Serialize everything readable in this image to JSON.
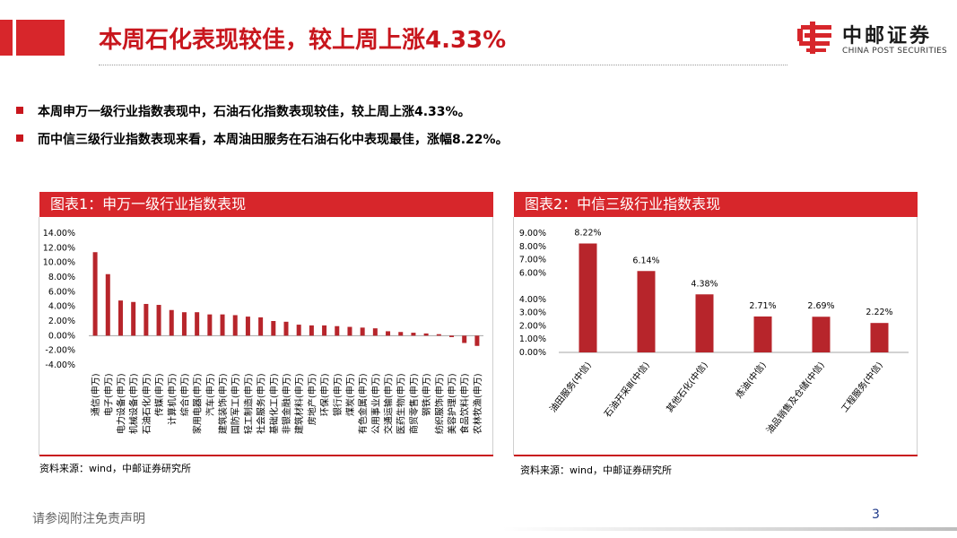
{
  "header": {
    "title": "本周石化表现较佳，较上周上涨4.33%",
    "logo_cn": "中邮证券",
    "logo_en": "CHINA POST SECURITIES"
  },
  "bullets": [
    "本周申万一级行业指数表现中，石油石化指数表现较佳，较上周上涨4.33%。",
    "而中信三级行业指数表现来看，本周油田服务在石油石化中表现最佳，涨幅8.22%。"
  ],
  "panels": [
    {
      "title": "图表1：申万一级行业指数表现",
      "source": "资料来源：wind，中邮证券研究所"
    },
    {
      "title": "图表2：中信三级行业指数表现",
      "source": "资料来源：wind，中邮证券研究所"
    }
  ],
  "footer": {
    "note": "请参阅附注免责声明",
    "page": "3"
  },
  "colors": {
    "accent": "#d7262b",
    "bar": "#b7252b",
    "title": "#c8161d"
  },
  "chart_data": [
    {
      "type": "bar",
      "title": "",
      "ylim": [
        -4,
        14
      ],
      "y_ticks": [
        "14.00%",
        "12.00%",
        "10.00%",
        "8.00%",
        "6.00%",
        "4.00%",
        "2.00%",
        "0.00%",
        "-2.00%",
        "-4.00%"
      ],
      "y_tick_values": [
        14,
        12,
        10,
        8,
        6,
        4,
        2,
        0,
        -2,
        -4
      ],
      "categories": [
        "通信(申万)",
        "电子(申万)",
        "电力设备(申万)",
        "机械设备(申万)",
        "石油石化(申万)",
        "传媒(申万)",
        "计算机(申万)",
        "综合(申万)",
        "家用电器(申万)",
        "汽车(申万)",
        "建筑装饰(申万)",
        "国防军工(申万)",
        "轻工制造(申万)",
        "社会服务(申万)",
        "基础化工(申万)",
        "非银金融(申万)",
        "建筑材料(申万)",
        "房地产(申万)",
        "环保(申万)",
        "银行(申万)",
        "煤炭(申万)",
        "有色金属(申万)",
        "公用事业(申万)",
        "交通运输(申万)",
        "医药生物(申万)",
        "商贸零售(申万)",
        "钢铁(申万)",
        "纺织服饰(申万)",
        "美容护理(申万)",
        "食品饮料(申万)",
        "农林牧渔(申万)"
      ],
      "values": [
        11.4,
        8.4,
        4.8,
        4.6,
        4.33,
        4.2,
        3.5,
        3.2,
        3.2,
        2.9,
        2.9,
        2.8,
        2.6,
        2.5,
        2.0,
        1.9,
        1.5,
        1.4,
        1.4,
        1.3,
        1.2,
        1.1,
        1.0,
        0.6,
        0.5,
        0.4,
        0.3,
        0.2,
        -0.2,
        -1.0,
        -1.4
      ],
      "grid": false,
      "legend": "none"
    },
    {
      "type": "bar",
      "title": "",
      "ylim": [
        0,
        9
      ],
      "y_ticks": [
        "9.00%",
        "8.00%",
        "7.00%",
        "6.00%",
        "4.00%",
        "3.00%",
        "2.00%",
        "1.00%",
        "0.00%"
      ],
      "y_tick_values": [
        9,
        8,
        7,
        6,
        4,
        3,
        2,
        1,
        0
      ],
      "categories": [
        "油田服务(中信)",
        "石油开采Ⅲ(中信)",
        "其他石化(中信)",
        "炼油(中信)",
        "油品销售及仓储(中信)",
        "工程服务(中信)"
      ],
      "values": [
        8.22,
        6.14,
        4.38,
        2.71,
        2.69,
        2.22
      ],
      "data_labels": [
        "8.22%",
        "6.14%",
        "4.38%",
        "2.71%",
        "2.69%",
        "2.22%"
      ],
      "grid": false,
      "legend": "none"
    }
  ]
}
